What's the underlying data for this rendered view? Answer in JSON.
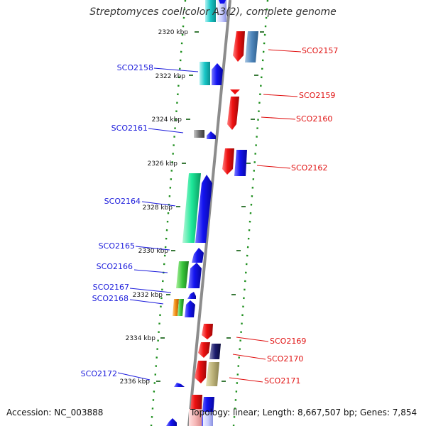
{
  "title": "Streptomyces coelicolor A3(2), complete genome",
  "footer": {
    "accession": "Accession: NC_003888",
    "summary": "Topology: linear; Length: 8,667,507 bp; Genes: 7,854"
  },
  "colors": {
    "forward_label": "#1a1adb",
    "reverse_label": "#e01010",
    "backbone": "#8c8c8c",
    "tick": "#3a7a3a",
    "dot_line": "#1e8f1e",
    "red": "#ee1111",
    "blue": "#1010ee"
  },
  "ticks": [
    {
      "label": "2320 kbp"
    },
    {
      "label": "2322 kbp"
    },
    {
      "label": "2324 kbp"
    },
    {
      "label": "2326 kbp"
    },
    {
      "label": "2328 kbp"
    },
    {
      "label": "2330 kbp"
    },
    {
      "label": "2332 kbp"
    },
    {
      "label": "2334 kbp"
    },
    {
      "label": "2336 kbp"
    }
  ],
  "forward_genes": [
    {
      "label": "SCO2158"
    },
    {
      "label": "SCO2161"
    },
    {
      "label": "SCO2164"
    },
    {
      "label": "SCO2165"
    },
    {
      "label": "SCO2166"
    },
    {
      "label": "SCO2167"
    },
    {
      "label": "SCO2168"
    },
    {
      "label": "SCO2172"
    }
  ],
  "reverse_genes": [
    {
      "label": "SCO2157"
    },
    {
      "label": "SCO2159"
    },
    {
      "label": "SCO2160"
    },
    {
      "label": "SCO2162"
    },
    {
      "label": "SCO2169"
    },
    {
      "label": "SCO2170"
    },
    {
      "label": "SCO2171"
    }
  ]
}
